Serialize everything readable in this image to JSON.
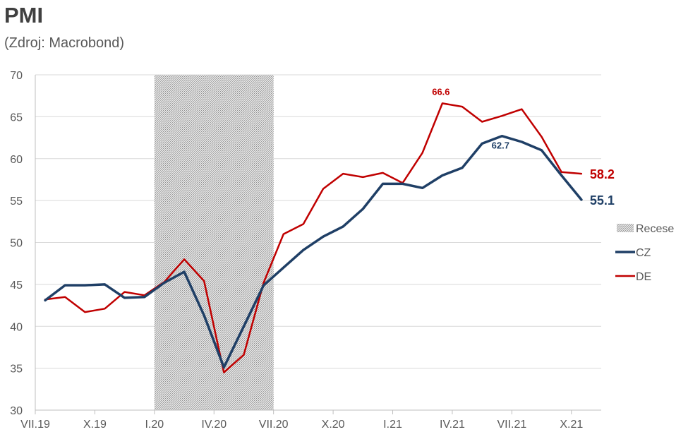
{
  "title": "PMI",
  "subtitle": "(Zdroj: Macrobond)",
  "colors": {
    "CZ": "#1f3f66",
    "DE": "#c00000",
    "recession": "#bfbfbf",
    "grid": "#d9d9d9",
    "axis": "#bfbfbf"
  },
  "chart_data": {
    "type": "line",
    "title": "PMI",
    "subtitle": "(Zdroj: Macrobond)",
    "x": [
      "2019-07",
      "2019-08",
      "2019-09",
      "2019-10",
      "2019-11",
      "2019-12",
      "2020-01",
      "2020-02",
      "2020-03",
      "2020-04",
      "2020-05",
      "2020-06",
      "2020-07",
      "2020-08",
      "2020-09",
      "2020-10",
      "2020-11",
      "2020-12",
      "2021-01",
      "2021-02",
      "2021-03",
      "2021-04",
      "2021-05",
      "2021-06",
      "2021-07",
      "2021-08",
      "2021-09",
      "2021-10"
    ],
    "x_tick_labels": [
      "VII.19",
      "X.19",
      "I.20",
      "IV.20",
      "VII.20",
      "X.20",
      "I.21",
      "IV.21",
      "VII.21",
      "X.21"
    ],
    "ylim": [
      30,
      70
    ],
    "y_ticks": [
      30,
      35,
      40,
      45,
      50,
      55,
      60,
      65,
      70
    ],
    "grid": true,
    "legend_position": "right",
    "series": [
      {
        "name": "CZ",
        "values": [
          43.1,
          44.9,
          44.9,
          45.0,
          43.4,
          43.5,
          45.2,
          46.5,
          41.3,
          35.1,
          40.0,
          44.9,
          47.0,
          49.1,
          50.7,
          51.9,
          54.0,
          57.0,
          57.0,
          56.5,
          58.0,
          58.9,
          61.8,
          62.7,
          62.0,
          61.0,
          58.0,
          55.1
        ]
      },
      {
        "name": "DE",
        "values": [
          43.2,
          43.5,
          41.7,
          42.1,
          44.1,
          43.7,
          45.3,
          48.0,
          45.4,
          34.5,
          36.6,
          45.2,
          51.0,
          52.2,
          56.4,
          58.2,
          57.8,
          58.3,
          57.1,
          60.7,
          66.6,
          66.2,
          64.4,
          65.1,
          65.9,
          62.6,
          58.4,
          58.2
        ]
      }
    ],
    "recession": {
      "name": "Recese",
      "from": "2020-01",
      "to": "2020-07"
    },
    "annotations": [
      {
        "series": "DE",
        "x": "2021-03",
        "text": "66.6"
      },
      {
        "series": "CZ",
        "x": "2021-06",
        "text": "62.7"
      },
      {
        "series": "DE",
        "x": "2021-10",
        "text": "58.2"
      },
      {
        "series": "CZ",
        "x": "2021-10",
        "text": "55.1"
      }
    ],
    "legend": [
      "Recese",
      "CZ",
      "DE"
    ]
  }
}
